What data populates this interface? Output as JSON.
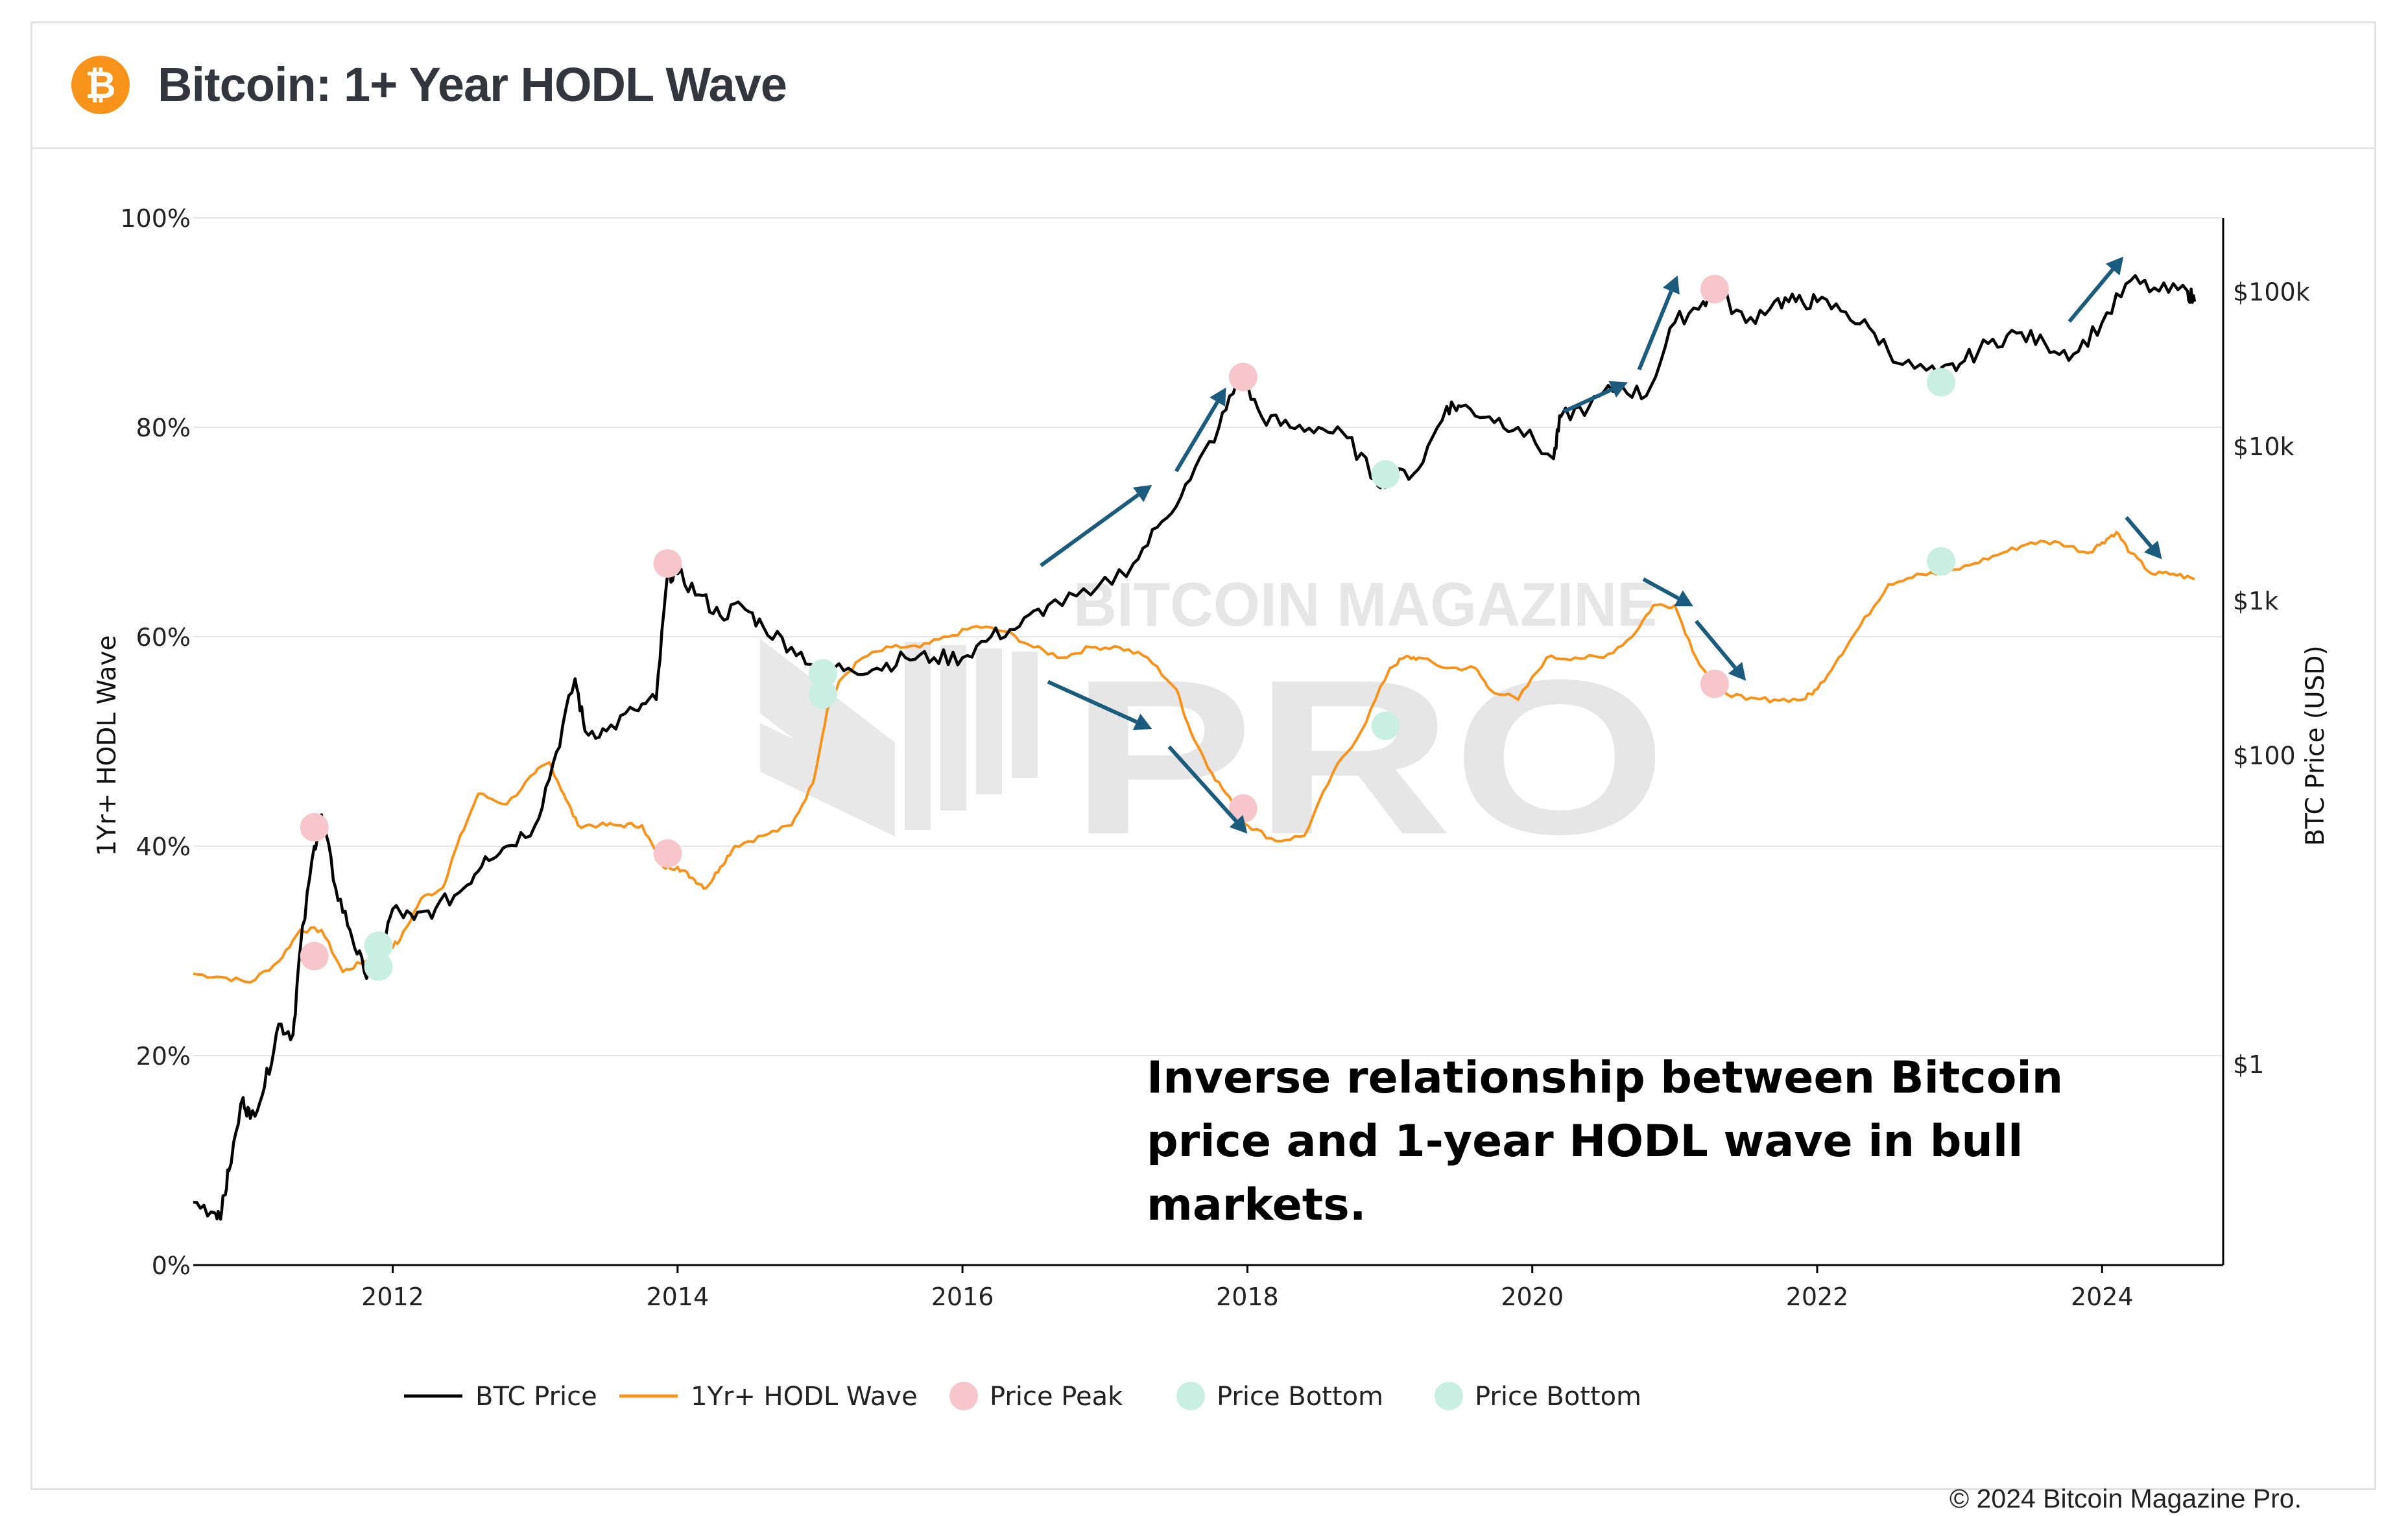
{
  "header": {
    "logo_glyph": "₿",
    "title": "Bitcoin: 1+ Year HODL Wave"
  },
  "footer": {
    "copyright": "© 2024 Bitcoin Magazine Pro."
  },
  "watermark": {
    "brand_top": "BITCOIN MAGAZINE",
    "brand_big": "PRO"
  },
  "annotation": {
    "lines": [
      "Inverse relationship between Bitcoin",
      "price and 1-year HODL wave in bull",
      "markets."
    ]
  },
  "colors": {
    "btc_price": "#000000",
    "hodl_wave": "#f7931a",
    "price_peak": "#f7c6cb",
    "price_bottom": "#c9efe3",
    "arrows": "#1b5c7e",
    "gridline": "#e5e5e5"
  },
  "chart_data": {
    "type": "line",
    "title": "",
    "x_ticks": [
      "2012",
      "2014",
      "2016",
      "2018",
      "2020",
      "2022",
      "2024"
    ],
    "xlim": [
      2010.6,
      2024.85
    ],
    "y_left": {
      "label": "1Yr+ HODL Wave",
      "ticks": [
        "0%",
        "20%",
        "40%",
        "60%",
        "80%",
        "100%"
      ],
      "ylim": [
        0,
        100
      ],
      "unit": "%"
    },
    "y_right": {
      "label": "BTC Price (USD)",
      "scale": "log",
      "ticks": [
        "$1",
        "$100",
        "$1k",
        "$10k",
        "$100k"
      ],
      "tick_values": [
        1,
        100,
        1000,
        10000,
        100000
      ],
      "ylim": [
        0.05,
        300000
      ]
    },
    "legend_position": "bottom",
    "grid": true,
    "legend": [
      "BTC Price",
      "1Yr+ HODL Wave",
      "Price Peak",
      "Price Bottom",
      "Price Bottom"
    ],
    "series": [
      {
        "name": "BTC Price",
        "axis": "left",
        "unit": "%",
        "x": [
          2010.6,
          2010.75,
          2010.8,
          2010.85,
          2010.95,
          2011.0,
          2011.1,
          2011.2,
          2011.3,
          2011.35,
          2011.45,
          2011.5,
          2011.6,
          2011.7,
          2011.8,
          2011.9,
          2012.0,
          2012.15,
          2012.3,
          2012.5,
          2012.65,
          2012.8,
          2013.0,
          2013.15,
          2013.28,
          2013.35,
          2013.5,
          2013.7,
          2013.85,
          2013.93,
          2014.0,
          2014.15,
          2014.3,
          2014.45,
          2014.6,
          2014.8,
          2015.0,
          2015.2,
          2015.4,
          2015.6,
          2015.8,
          2016.0,
          2016.2,
          2016.4,
          2016.6,
          2016.9,
          2017.2,
          2017.4,
          2017.6,
          2017.8,
          2017.95,
          2018.1,
          2018.3,
          2018.5,
          2018.7,
          2018.9,
          2019.0,
          2019.2,
          2019.4,
          2019.5,
          2019.7,
          2019.9,
          2020.15,
          2020.2,
          2020.4,
          2020.6,
          2020.8,
          2021.0,
          2021.2,
          2021.3,
          2021.5,
          2021.7,
          2021.85,
          2022.0,
          2022.2,
          2022.4,
          2022.6,
          2022.85,
          2023.0,
          2023.2,
          2023.4,
          2023.6,
          2023.8,
          2024.0,
          2024.2,
          2024.4,
          2024.6,
          2024.65
        ],
        "y": [
          6,
          5,
          5.2,
          9,
          16,
          14,
          17,
          23,
          22,
          30,
          40,
          43,
          36,
          32,
          28,
          29,
          34,
          33,
          34,
          36,
          39,
          40,
          42,
          49,
          56,
          51,
          51,
          53,
          54,
          66,
          66,
          64,
          62,
          63,
          61,
          59,
          57,
          57,
          57,
          58,
          58,
          58,
          60,
          61,
          63,
          64,
          67,
          71,
          75,
          80,
          85,
          81,
          80,
          80,
          79,
          75,
          75,
          76,
          82,
          82,
          81,
          80,
          77,
          81,
          82,
          84,
          83,
          90,
          92,
          93,
          90,
          92,
          92,
          92,
          91,
          89,
          86,
          85,
          86,
          88,
          89,
          88,
          87,
          90,
          94,
          93,
          93,
          92
        ]
      },
      {
        "name": "1Yr+ HODL Wave",
        "axis": "left",
        "unit": "%",
        "x": [
          2010.6,
          2010.8,
          2011.0,
          2011.2,
          2011.35,
          2011.5,
          2011.65,
          2011.8,
          2011.95,
          2012.05,
          2012.2,
          2012.35,
          2012.45,
          2012.6,
          2012.8,
          2013.0,
          2013.1,
          2013.2,
          2013.3,
          2013.45,
          2013.6,
          2013.75,
          2013.9,
          2014.0,
          2014.1,
          2014.2,
          2014.3,
          2014.4,
          2014.6,
          2014.8,
          2014.95,
          2015.05,
          2015.15,
          2015.3,
          2015.5,
          2015.7,
          2015.9,
          2016.1,
          2016.3,
          2016.5,
          2016.7,
          2016.9,
          2017.1,
          2017.3,
          2017.5,
          2017.6,
          2017.75,
          2017.9,
          2018.0,
          2018.2,
          2018.4,
          2018.6,
          2018.8,
          2019.0,
          2019.1,
          2019.2,
          2019.4,
          2019.6,
          2019.7,
          2019.9,
          2020.1,
          2020.3,
          2020.5,
          2020.7,
          2020.85,
          2021.0,
          2021.15,
          2021.3,
          2021.5,
          2021.7,
          2021.9,
          2022.0,
          2022.15,
          2022.3,
          2022.5,
          2022.7,
          2022.9,
          2023.1,
          2023.3,
          2023.5,
          2023.7,
          2023.9,
          2024.0,
          2024.1,
          2024.2,
          2024.35,
          2024.5,
          2024.65
        ],
        "y": [
          27.8,
          27.5,
          27,
          29,
          32,
          32,
          28,
          29,
          30,
          31,
          35,
          36,
          40,
          45,
          44,
          47,
          48,
          45,
          42,
          42,
          42,
          42,
          38,
          38,
          37,
          36,
          38,
          40,
          41,
          42,
          46,
          53,
          56,
          58,
          59,
          59,
          60,
          61,
          60.5,
          59,
          58,
          59,
          59,
          58,
          55,
          51,
          47,
          44,
          42,
          40.5,
          41,
          47,
          51,
          57,
          58,
          58,
          57,
          57,
          55,
          54,
          58,
          58,
          58,
          60,
          63,
          63,
          58,
          55,
          54,
          54,
          54,
          55,
          58,
          61,
          65,
          66,
          66,
          67,
          68,
          69,
          69,
          68,
          69,
          70,
          68,
          66,
          66,
          65.5
        ]
      }
    ],
    "markers": {
      "price_peak": [
        {
          "x": 2011.45,
          "y": 41.8
        },
        {
          "x": 2011.45,
          "y": 29.5
        },
        {
          "x": 2013.93,
          "y": 67
        },
        {
          "x": 2013.93,
          "y": 39.3
        },
        {
          "x": 2017.97,
          "y": 84.8
        },
        {
          "x": 2017.97,
          "y": 43.6
        },
        {
          "x": 2021.28,
          "y": 93.2
        },
        {
          "x": 2021.28,
          "y": 55.5
        }
      ],
      "price_bottom": [
        {
          "x": 2011.9,
          "y": 28.5
        },
        {
          "x": 2011.9,
          "y": 30.5
        },
        {
          "x": 2015.02,
          "y": 56.5
        },
        {
          "x": 2015.02,
          "y": 54.5
        },
        {
          "x": 2018.97,
          "y": 75.5
        },
        {
          "x": 2018.97,
          "y": 51.5
        },
        {
          "x": 2022.87,
          "y": 84.3
        },
        {
          "x": 2022.87,
          "y": 67.2
        }
      ]
    },
    "arrows": [
      {
        "from": [
          2016.55,
          66.8
        ],
        "to": [
          2017.33,
          74.5
        ]
      },
      {
        "from": [
          2017.5,
          75.8
        ],
        "to": [
          2017.85,
          83.8
        ]
      },
      {
        "from": [
          2016.6,
          55.7
        ],
        "to": [
          2017.33,
          51.2
        ]
      },
      {
        "from": [
          2017.45,
          49.5
        ],
        "to": [
          2018.0,
          41.2
        ]
      },
      {
        "from": [
          2020.22,
          81.5
        ],
        "to": [
          2020.67,
          84.3
        ]
      },
      {
        "from": [
          2020.75,
          85.5
        ],
        "to": [
          2021.02,
          94.5
        ]
      },
      {
        "from": [
          2020.78,
          65.5
        ],
        "to": [
          2021.13,
          62.9
        ]
      },
      {
        "from": [
          2021.15,
          61.5
        ],
        "to": [
          2021.5,
          55.8
        ]
      },
      {
        "from": [
          2023.77,
          90.1
        ],
        "to": [
          2024.15,
          96.3
        ]
      },
      {
        "from": [
          2024.17,
          71.4
        ],
        "to": [
          2024.42,
          67.4
        ]
      }
    ]
  }
}
